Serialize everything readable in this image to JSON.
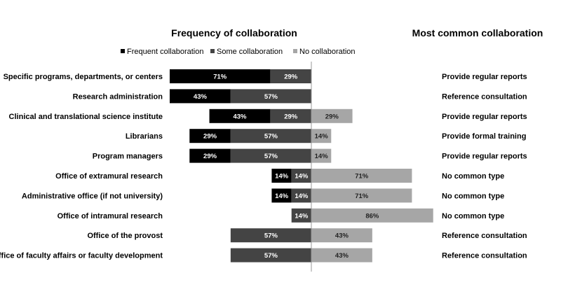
{
  "chart_data": {
    "type": "bar",
    "stacked": true,
    "diverging": true,
    "title": "Frequency of collaboration",
    "right_title": "Most common collaboration",
    "legend": {
      "placement": "top",
      "entries": [
        "Frequent collaboration",
        "Some collaboration",
        "No collaboration"
      ]
    },
    "grid": false,
    "categories": [
      "Specific programs, departments, or centers",
      "Research administration",
      "Clinical and translational science institute",
      "Librarians",
      "Program managers",
      "Office of extramural research",
      "Administrative office (if not university)",
      "Office of intramural research",
      "Office of the provost",
      "Office of faculty affairs or faculty development"
    ],
    "series": [
      {
        "name": "Frequent collaboration",
        "values": [
          71,
          43,
          43,
          29,
          29,
          14,
          14,
          0,
          0,
          0
        ],
        "color": "#000000"
      },
      {
        "name": "Some collaboration",
        "values": [
          29,
          57,
          29,
          57,
          57,
          14,
          14,
          14,
          57,
          57
        ],
        "color": "#444444"
      },
      {
        "name": "No collaboration",
        "values": [
          0,
          0,
          29,
          14,
          14,
          71,
          71,
          86,
          43,
          43
        ],
        "color": "#a6a6a6"
      }
    ],
    "most_common": [
      "Provide regular reports",
      "Reference consultation",
      "Provide regular reports",
      "Provide formal training",
      "Provide regular reports",
      "No common type",
      "No common type",
      "No common type",
      "Reference consultation",
      "Reference consultation"
    ],
    "value_suffix": "%"
  }
}
